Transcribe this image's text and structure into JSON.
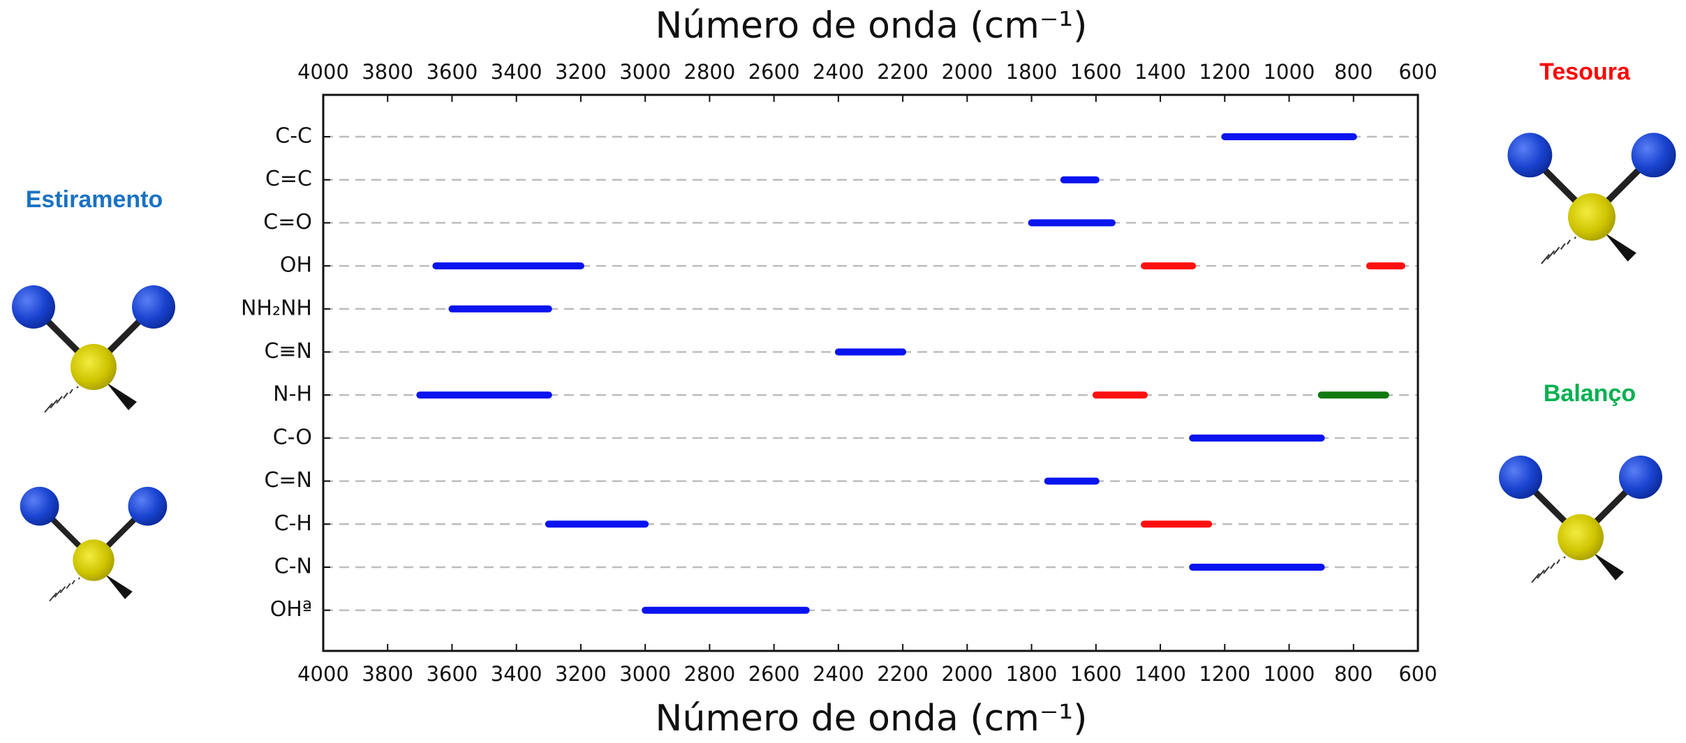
{
  "chart_data": {
    "type": "range-bar",
    "x_label": "Número de onda (cm⁻¹)",
    "categories": [
      "C-C",
      "C=C",
      "C=O",
      "OH",
      "NH₂NH",
      "C≡N",
      "N-H",
      "C-O",
      "C=N",
      "C-H",
      "C-N",
      "OHª"
    ],
    "xlim": [
      4000,
      600
    ],
    "xticks": [
      4000,
      3800,
      3600,
      3400,
      3200,
      3000,
      2800,
      2600,
      2400,
      2200,
      2000,
      1800,
      1600,
      1400,
      1200,
      1000,
      800,
      600
    ],
    "grid": true,
    "series": [
      {
        "name": "Estiramento",
        "color": "#0a14ee",
        "values": [
          [
            [
              1200,
              800
            ]
          ],
          [
            [
              1700,
              1600
            ]
          ],
          [
            [
              1800,
              1550
            ]
          ],
          [
            [
              3650,
              3200
            ]
          ],
          [
            [
              3600,
              3300
            ]
          ],
          [
            [
              2400,
              2200
            ]
          ],
          [
            [
              3700,
              3300
            ]
          ],
          [
            [
              1300,
              900
            ]
          ],
          [
            [
              1750,
              1600
            ]
          ],
          [
            [
              3300,
              3000
            ]
          ],
          [
            [
              1300,
              900
            ]
          ],
          [
            [
              3000,
              2500
            ]
          ]
        ]
      },
      {
        "name": "Tesoura",
        "color": "#ff1010",
        "values": [
          null,
          null,
          null,
          [
            [
              1450,
              1300
            ],
            [
              750,
              650
            ]
          ],
          null,
          null,
          [
            [
              1600,
              1450
            ]
          ],
          null,
          null,
          [
            [
              1450,
              1250
            ]
          ],
          null,
          null
        ]
      },
      {
        "name": "Balanço",
        "color": "#107a10",
        "values": [
          null,
          null,
          null,
          null,
          null,
          null,
          [
            [
              900,
              700
            ]
          ],
          null,
          null,
          null,
          null,
          null
        ]
      }
    ]
  }
}
